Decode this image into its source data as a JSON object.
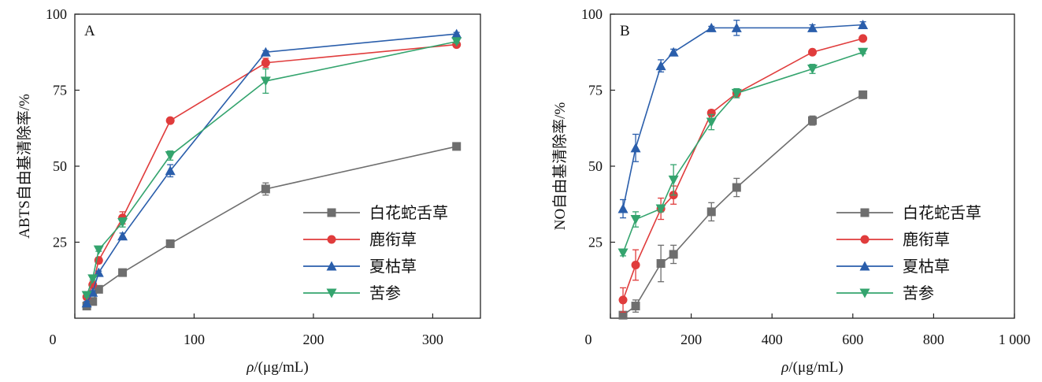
{
  "colors": {
    "gray": "#6e6e6e",
    "red": "#e03c3c",
    "blue": "#2a5eab",
    "green": "#34a46e"
  },
  "chart_data": [
    {
      "type": "line",
      "panel_label": "A",
      "xlabel": "ρ/(μg/mL)",
      "ylabel": "ABTS自由基清除率/%",
      "xlim": [
        0,
        340
      ],
      "ylim": [
        0,
        100
      ],
      "xticks": [
        0,
        100,
        200,
        300
      ],
      "xtick_labels": [
        "0",
        "100",
        "200",
        "300"
      ],
      "yticks": [
        25,
        50,
        75,
        100
      ],
      "ytick_labels": [
        "25",
        "50",
        "75",
        "100"
      ],
      "legend_position": "lower-right",
      "series": [
        {
          "name": "白花蛇舌草",
          "color": "#6e6e6e",
          "marker": "square",
          "x": [
            10,
            15,
            20,
            40,
            80,
            160,
            320
          ],
          "y": [
            4,
            5.5,
            9.5,
            15,
            24.5,
            42.5,
            56.5
          ],
          "err": [
            0.5,
            0.5,
            0.5,
            0.5,
            0.5,
            2,
            0.5
          ]
        },
        {
          "name": "鹿衔草",
          "color": "#e03c3c",
          "marker": "circle",
          "x": [
            10,
            15,
            20,
            40,
            80,
            160,
            320
          ],
          "y": [
            7,
            11,
            19,
            33,
            65,
            84,
            90
          ],
          "err": [
            0.5,
            1,
            1,
            2,
            0.5,
            1.5,
            0.5
          ]
        },
        {
          "name": "夏枯草",
          "color": "#2a5eab",
          "marker": "triangle-up",
          "x": [
            10,
            15,
            20,
            40,
            80,
            160,
            320
          ],
          "y": [
            5,
            8.5,
            15,
            27,
            48.5,
            87.5,
            93.5
          ],
          "err": [
            0.5,
            0.5,
            0.5,
            1,
            2,
            0.5,
            0.5
          ]
        },
        {
          "name": "苦参",
          "color": "#34a46e",
          "marker": "triangle-down",
          "x": [
            10,
            15,
            20,
            40,
            80,
            160,
            320
          ],
          "y": [
            7.5,
            13,
            22.5,
            31.5,
            53.5,
            78,
            91
          ],
          "err": [
            0.5,
            0.5,
            0.5,
            1.5,
            1.5,
            4,
            0.5
          ]
        }
      ]
    },
    {
      "type": "line",
      "panel_label": "B",
      "xlabel": "ρ/(μg/mL)",
      "ylabel": "NO自由基清除率/%",
      "xlim": [
        0,
        1000
      ],
      "ylim": [
        0,
        100
      ],
      "xticks": [
        0,
        200,
        400,
        600,
        800,
        1000
      ],
      "xtick_labels": [
        "0",
        "200",
        "400",
        "600",
        "800",
        "1 000"
      ],
      "yticks": [
        25,
        50,
        75,
        100
      ],
      "ytick_labels": [
        "25",
        "50",
        "75",
        "100"
      ],
      "legend_position": "lower-right",
      "series": [
        {
          "name": "白花蛇舌草",
          "color": "#6e6e6e",
          "marker": "square",
          "x": [
            31.25,
            62.5,
            125,
            156.25,
            250,
            312.5,
            500,
            625
          ],
          "y": [
            1,
            4,
            18,
            21,
            35,
            43,
            65,
            73.5
          ],
          "err": [
            1,
            2,
            6,
            3,
            3,
            3,
            1.5,
            0.5
          ]
        },
        {
          "name": "鹿衔草",
          "color": "#e03c3c",
          "marker": "circle",
          "x": [
            31.25,
            62.5,
            125,
            156.25,
            250,
            312.5,
            500,
            625
          ],
          "y": [
            6,
            17.5,
            36,
            40.5,
            67.5,
            74,
            87.5,
            92
          ],
          "err": [
            4,
            5,
            3.5,
            3,
            1,
            1,
            0.5,
            0.5
          ]
        },
        {
          "name": "夏枯草",
          "color": "#2a5eab",
          "marker": "triangle-up",
          "x": [
            31.25,
            62.5,
            125,
            156.25,
            250,
            312.5,
            500,
            625
          ],
          "y": [
            36,
            56,
            83,
            87.5,
            95.5,
            95.5,
            95.5,
            96.5
          ],
          "err": [
            3,
            4.5,
            2,
            1,
            0.5,
            2.5,
            1,
            1
          ]
        },
        {
          "name": "苦参",
          "color": "#34a46e",
          "marker": "triangle-down",
          "x": [
            31.25,
            62.5,
            125,
            156.25,
            250,
            312.5,
            500,
            625
          ],
          "y": [
            21.5,
            32.5,
            36,
            45.5,
            64.5,
            74,
            82,
            87.5
          ],
          "err": [
            1,
            2.5,
            1,
            5,
            2.5,
            1.5,
            1.5,
            0.5
          ]
        }
      ]
    }
  ]
}
